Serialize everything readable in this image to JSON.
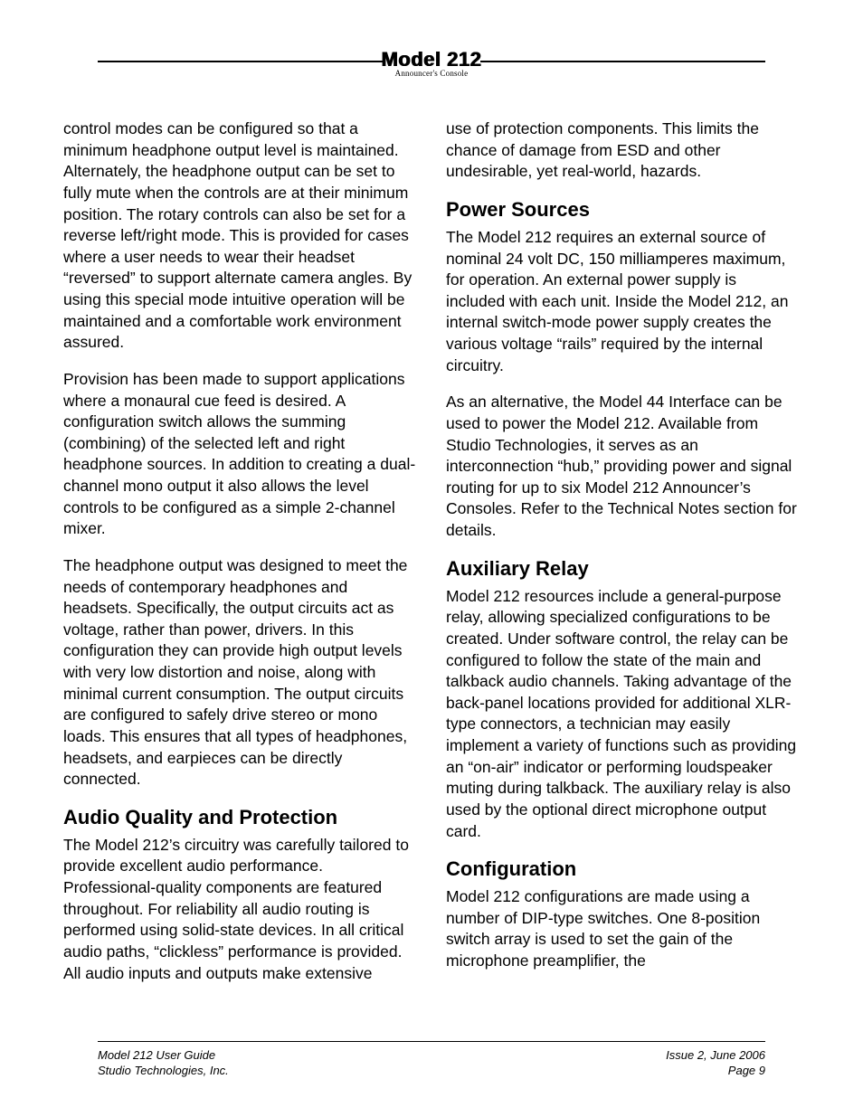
{
  "header": {
    "model": "Model 212",
    "subtitle": "Announcer's Console"
  },
  "left_column": {
    "para1": "control modes can be configured so that a minimum headphone output level is maintained. Alternately, the headphone output can be set to fully mute when the controls are at their minimum position. The rotary controls can also be set for a reverse left/right mode. This is provided for cases where a user needs to wear their headset “reversed” to support alternate camera angles. By using this special mode intuitive operation will be maintained and a comfortable work environment assured.",
    "para2": "Provision has been made to support applications where a monaural cue feed is desired. A configuration switch allows the summing (combining) of the selected left and right headphone sources. In addition to creating a dual-channel mono output it also allows the level controls to be configured as a simple 2-channel mixer.",
    "para3": "The headphone output was designed to meet the needs of contemporary headphones and headsets. Specifically, the output circuits act as voltage, rather than power, drivers. In this configuration they can provide high output levels with very low distortion and noise, along with minimal current consumption. The output circuits are configured to safely drive stereo or mono loads. This ensures that all types of headphones, headsets, and earpieces can be directly connected.",
    "heading1": "Audio Quality and Protection",
    "para4": "The Model 212’s circuitry was carefully tailored to provide excellent audio performance. Professional-quality components are featured throughout. For reliability all audio routing is performed using solid-state devices. In all critical audio paths, “clickless” performance is provided. All audio inputs and outputs make extensive"
  },
  "right_column": {
    "para1": "use of protection components. This limits the chance of damage from ESD and other undesirable, yet real-world, hazards.",
    "heading1": "Power Sources",
    "para2": "The Model 212 requires an external source of nominal 24 volt DC, 150 milliamperes maximum, for operation. An external power supply is included with each unit. Inside the Model 212, an internal switch-mode power supply creates the various voltage “rails” required by the internal circuitry.",
    "para3": "As an alternative, the Model 44 Interface can be used to power the Model 212. Available from Studio Technologies, it serves as an interconnection “hub,” providing power and signal routing for up to six Model 212 Announcer’s Consoles. Refer to the Technical Notes section for details.",
    "heading2": "Auxiliary Relay",
    "para4": "Model 212 resources include a general-purpose relay, allowing specialized configurations to be created. Under software control, the relay can be configured to follow the state of the main and talkback audio channels. Taking advantage of the back-panel locations provided for additional XLR-type connectors, a technician may easily implement a variety of functions such as providing an “on-air” indicator or performing loudspeaker muting during talkback. The auxiliary relay is also used by the optional direct microphone output card.",
    "heading3": "Configuration",
    "para5": "Model 212 configurations are made using a number of DIP-type switches. One 8-position switch array is used to set the gain of the microphone preamplifier, the"
  },
  "footer": {
    "left_line1": "Model 212 User Guide",
    "left_line2": "Studio Technologies, Inc.",
    "right_line1": "Issue 2, June 2006",
    "right_line2": "Page 9"
  }
}
